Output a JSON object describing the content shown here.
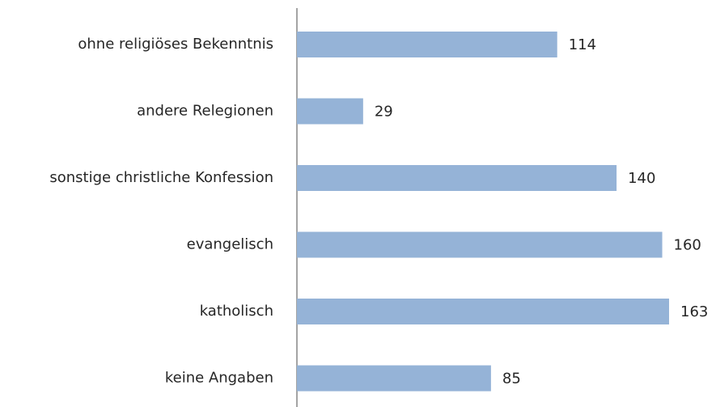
{
  "chart_data": {
    "type": "hbar",
    "categories": [
      "ohne religiöses Bekenntnis",
      "andere Relegionen",
      "sonstige christliche Konfession",
      "evangelisch",
      "katholisch",
      "keine Angaben"
    ],
    "values": [
      114,
      29,
      140,
      160,
      163,
      85
    ],
    "color": "#95b3d7"
  }
}
